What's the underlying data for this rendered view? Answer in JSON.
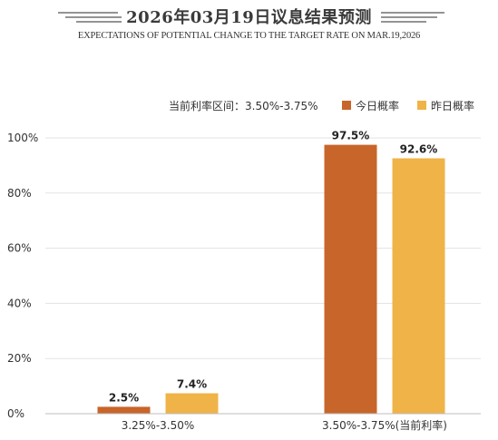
{
  "header": {
    "title": "2026年03月19日议息结果预测",
    "subtitle": "EXPECTATIONS OF POTENTIAL CHANGE TO THE TARGET RATE ON MAR.19,2026"
  },
  "chart_data": {
    "type": "bar",
    "categories": [
      "3.25%-3.50%",
      "3.50%-3.75%(当前利率)"
    ],
    "series": [
      {
        "name": "今日概率",
        "values": [
          2.5,
          97.5
        ],
        "color": "#c8652a"
      },
      {
        "name": "昨日概率",
        "values": [
          7.4,
          92.6
        ],
        "color": "#f0b347"
      }
    ],
    "data_labels": [
      [
        "2.5%",
        "97.5%"
      ],
      [
        "7.4%",
        "92.6%"
      ]
    ],
    "yticks": [
      "0%",
      "20%",
      "40%",
      "60%",
      "80%",
      "100%"
    ],
    "ylim": [
      0,
      100
    ],
    "grid": true,
    "legend_title": "当前利率区间：3.50%-3.75%",
    "legend_position": "top-right"
  }
}
